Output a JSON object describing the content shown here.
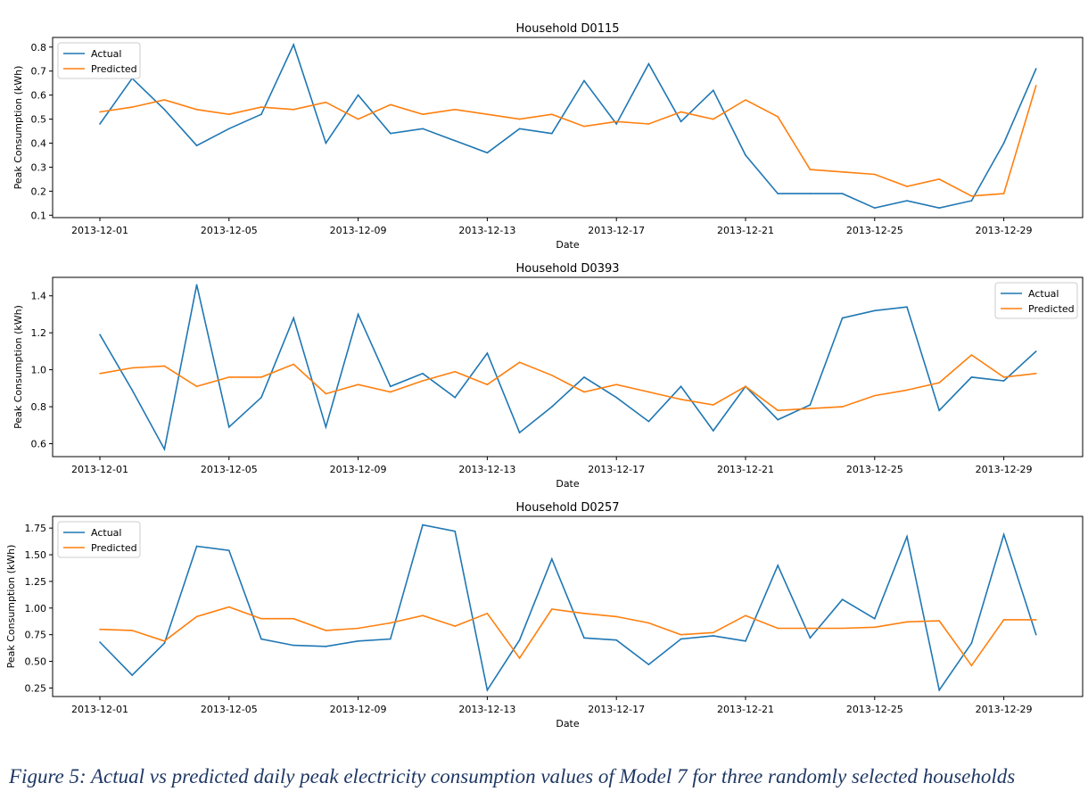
{
  "caption": "Figure 5: Actual vs predicted daily peak electricity consumption values of Model 7 for three randomly selected households",
  "colors": {
    "actual": "#1f77b4",
    "predicted": "#ff7f0e"
  },
  "chart_data": [
    {
      "type": "line",
      "title": "Household D0115",
      "xlabel": "Date",
      "ylabel": "Peak Consumption (kWh)",
      "x": [
        "2013-12-01",
        "2013-12-02",
        "2013-12-03",
        "2013-12-04",
        "2013-12-05",
        "2013-12-06",
        "2013-12-07",
        "2013-12-08",
        "2013-12-09",
        "2013-12-10",
        "2013-12-11",
        "2013-12-12",
        "2013-12-13",
        "2013-12-14",
        "2013-12-15",
        "2013-12-16",
        "2013-12-17",
        "2013-12-18",
        "2013-12-19",
        "2013-12-20",
        "2013-12-21",
        "2013-12-22",
        "2013-12-23",
        "2013-12-24",
        "2013-12-25",
        "2013-12-26",
        "2013-12-27",
        "2013-12-28",
        "2013-12-29",
        "2013-12-30"
      ],
      "xticks": [
        "2013-12-01",
        "2013-12-05",
        "2013-12-09",
        "2013-12-13",
        "2013-12-17",
        "2013-12-21",
        "2013-12-25",
        "2013-12-29"
      ],
      "yticks": [
        "0.1",
        "0.2",
        "0.3",
        "0.4",
        "0.5",
        "0.6",
        "0.7",
        "0.8"
      ],
      "ylim": [
        0.09,
        0.84
      ],
      "legend": "top-left",
      "series": [
        {
          "name": "Actual",
          "values": [
            0.48,
            0.67,
            0.54,
            0.39,
            0.46,
            0.52,
            0.81,
            0.4,
            0.6,
            0.44,
            0.46,
            0.41,
            0.36,
            0.46,
            0.44,
            0.66,
            0.48,
            0.73,
            0.49,
            0.62,
            0.35,
            0.19,
            0.19,
            0.19,
            0.13,
            0.16,
            0.13,
            0.16,
            0.4,
            0.71
          ]
        },
        {
          "name": "Predicted",
          "values": [
            0.53,
            0.55,
            0.58,
            0.54,
            0.52,
            0.55,
            0.54,
            0.57,
            0.5,
            0.56,
            0.52,
            0.54,
            0.52,
            0.5,
            0.52,
            0.47,
            0.49,
            0.48,
            0.53,
            0.5,
            0.58,
            0.51,
            0.29,
            0.28,
            0.27,
            0.22,
            0.25,
            0.18,
            0.19,
            0.64
          ]
        }
      ]
    },
    {
      "type": "line",
      "title": "Household D0393",
      "xlabel": "Date",
      "ylabel": "Peak Consumption (kWh)",
      "x": [
        "2013-12-01",
        "2013-12-02",
        "2013-12-03",
        "2013-12-04",
        "2013-12-05",
        "2013-12-06",
        "2013-12-07",
        "2013-12-08",
        "2013-12-09",
        "2013-12-10",
        "2013-12-11",
        "2013-12-12",
        "2013-12-13",
        "2013-12-14",
        "2013-12-15",
        "2013-12-16",
        "2013-12-17",
        "2013-12-18",
        "2013-12-19",
        "2013-12-20",
        "2013-12-21",
        "2013-12-22",
        "2013-12-23",
        "2013-12-24",
        "2013-12-25",
        "2013-12-26",
        "2013-12-27",
        "2013-12-28",
        "2013-12-29",
        "2013-12-30"
      ],
      "xticks": [
        "2013-12-01",
        "2013-12-05",
        "2013-12-09",
        "2013-12-13",
        "2013-12-17",
        "2013-12-21",
        "2013-12-25",
        "2013-12-29"
      ],
      "yticks": [
        "0.6",
        "0.8",
        "1.0",
        "1.2",
        "1.4"
      ],
      "ylim": [
        0.53,
        1.5
      ],
      "legend": "top-right",
      "series": [
        {
          "name": "Actual",
          "values": [
            1.19,
            0.89,
            0.57,
            1.46,
            0.69,
            0.85,
            1.28,
            0.69,
            1.3,
            0.91,
            0.98,
            0.85,
            1.09,
            0.66,
            0.8,
            0.96,
            0.85,
            0.72,
            0.91,
            0.67,
            0.91,
            0.73,
            0.81,
            1.28,
            1.32,
            1.34,
            0.78,
            0.96,
            0.94,
            1.1
          ]
        },
        {
          "name": "Predicted",
          "values": [
            0.98,
            1.01,
            1.02,
            0.91,
            0.96,
            0.96,
            1.03,
            0.87,
            0.92,
            0.88,
            0.94,
            0.99,
            0.92,
            1.04,
            0.97,
            0.88,
            0.92,
            0.88,
            0.84,
            0.81,
            0.91,
            0.78,
            0.79,
            0.8,
            0.86,
            0.89,
            0.93,
            1.08,
            0.96,
            0.98
          ]
        }
      ]
    },
    {
      "type": "line",
      "title": "Household D0257",
      "xlabel": "Date",
      "ylabel": "Peak Consumption (kWh)",
      "x": [
        "2013-12-01",
        "2013-12-02",
        "2013-12-03",
        "2013-12-04",
        "2013-12-05",
        "2013-12-06",
        "2013-12-07",
        "2013-12-08",
        "2013-12-09",
        "2013-12-10",
        "2013-12-11",
        "2013-12-12",
        "2013-12-13",
        "2013-12-14",
        "2013-12-15",
        "2013-12-16",
        "2013-12-17",
        "2013-12-18",
        "2013-12-19",
        "2013-12-20",
        "2013-12-21",
        "2013-12-22",
        "2013-12-23",
        "2013-12-24",
        "2013-12-25",
        "2013-12-26",
        "2013-12-27",
        "2013-12-28",
        "2013-12-29",
        "2013-12-30"
      ],
      "xticks": [
        "2013-12-01",
        "2013-12-05",
        "2013-12-09",
        "2013-12-13",
        "2013-12-17",
        "2013-12-21",
        "2013-12-25",
        "2013-12-29"
      ],
      "yticks": [
        "0.25",
        "0.50",
        "0.75",
        "1.00",
        "1.25",
        "1.50",
        "1.75"
      ],
      "ylim": [
        0.17,
        1.86
      ],
      "legend": "top-left",
      "series": [
        {
          "name": "Actual",
          "values": [
            0.68,
            0.37,
            0.67,
            1.58,
            1.54,
            0.71,
            0.65,
            0.64,
            0.69,
            0.71,
            1.78,
            1.72,
            0.23,
            0.7,
            1.46,
            0.72,
            0.7,
            0.47,
            0.71,
            0.74,
            0.69,
            1.4,
            0.72,
            1.08,
            0.9,
            1.67,
            0.23,
            0.67,
            1.69,
            0.75
          ]
        },
        {
          "name": "Predicted",
          "values": [
            0.8,
            0.79,
            0.69,
            0.92,
            1.01,
            0.9,
            0.9,
            0.79,
            0.81,
            0.86,
            0.93,
            0.83,
            0.95,
            0.53,
            0.99,
            0.95,
            0.92,
            0.86,
            0.75,
            0.77,
            0.93,
            0.81,
            0.81,
            0.81,
            0.82,
            0.87,
            0.88,
            0.46,
            0.89,
            0.89
          ]
        }
      ]
    }
  ]
}
